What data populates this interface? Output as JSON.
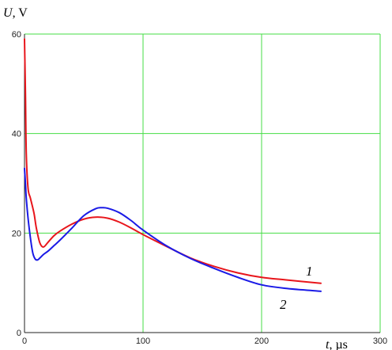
{
  "chart_data": {
    "type": "line",
    "title": "",
    "ylabel_var": "U",
    "ylabel_unit": ", V",
    "xlabel_var": "t",
    "xlabel_unit": ", µs",
    "xlim": [
      0,
      300
    ],
    "ylim": [
      0,
      60
    ],
    "x_ticks": [
      0,
      100,
      200,
      300
    ],
    "y_ticks": [
      0,
      20,
      40,
      60
    ],
    "grid": true,
    "colors": {
      "grid": "#44dd44",
      "axis": "#222222"
    },
    "series": [
      {
        "name": "1",
        "color": "#e8161c",
        "x": [
          0,
          0.8,
          1.5,
          3,
          5,
          8,
          10,
          13,
          16,
          20,
          25,
          30,
          40,
          50,
          60,
          70,
          80,
          90,
          100,
          120,
          140,
          160,
          180,
          200,
          220,
          250
        ],
        "y": [
          59,
          48,
          36,
          29,
          27,
          24,
          21,
          18,
          17.2,
          18.2,
          19.5,
          20.4,
          21.8,
          22.8,
          23.2,
          23.0,
          22.2,
          21.0,
          19.7,
          17.3,
          15.0,
          13.3,
          12.0,
          11.1,
          10.6,
          9.9
        ]
      },
      {
        "name": "2",
        "color": "#1a1ae6",
        "x": [
          0,
          0.8,
          1.5,
          3,
          5,
          7,
          9,
          11,
          13,
          16,
          20,
          25,
          30,
          40,
          50,
          60,
          65,
          70,
          80,
          90,
          100,
          120,
          140,
          160,
          180,
          200,
          220,
          250
        ],
        "y": [
          33,
          30,
          27,
          23,
          19,
          16,
          14.8,
          14.6,
          15.0,
          15.7,
          16.4,
          17.5,
          18.6,
          21.0,
          23.5,
          24.9,
          25.1,
          25.0,
          24.1,
          22.5,
          20.6,
          17.4,
          14.9,
          12.9,
          11.1,
          9.6,
          8.9,
          8.3
        ]
      }
    ]
  }
}
